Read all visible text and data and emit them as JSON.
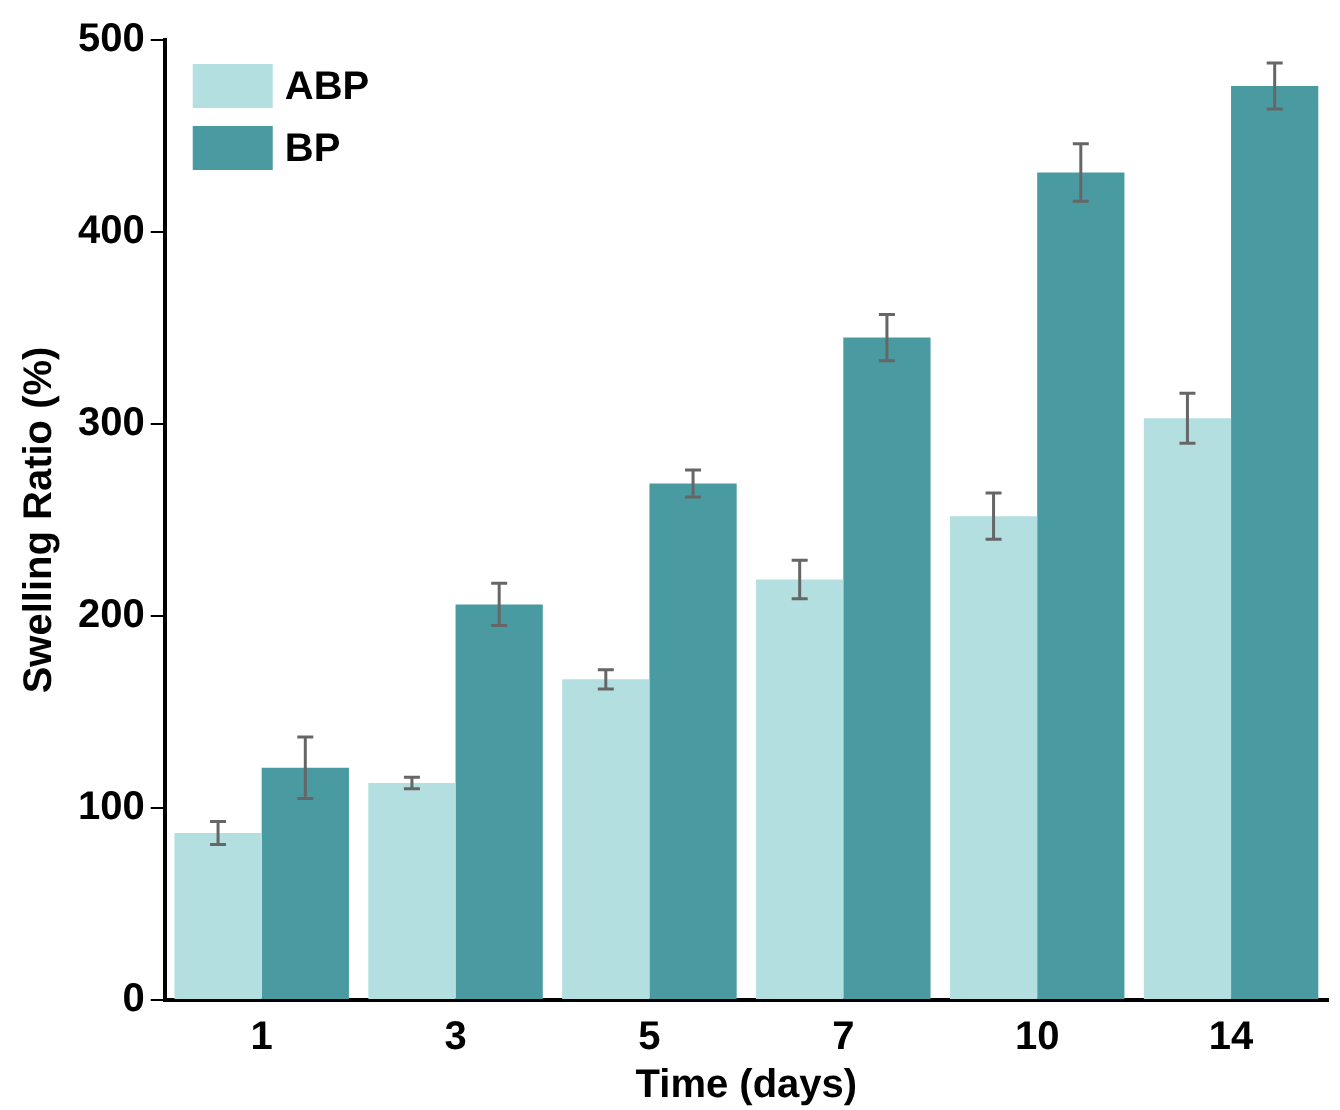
{
  "chart_data": {
    "type": "bar",
    "xlabel": "Time (days)",
    "ylabel": "Swelling Ratio (%)",
    "categories": [
      "1",
      "3",
      "5",
      "7",
      "10",
      "14"
    ],
    "series": [
      {
        "name": "ABP",
        "color": "#b3dfe0",
        "values": [
          87,
          113,
          167,
          219,
          252,
          303
        ],
        "errors": [
          6,
          3,
          5,
          10,
          12,
          13
        ]
      },
      {
        "name": "BP",
        "color": "#4a9ba1",
        "values": [
          121,
          206,
          269,
          345,
          431,
          476
        ],
        "errors": [
          16,
          11,
          7,
          12,
          15,
          12
        ]
      }
    ],
    "ylim": [
      0,
      500
    ],
    "yticks": [
      0,
      100,
      200,
      300,
      400,
      500
    ],
    "grid": false,
    "legend": "top left"
  }
}
